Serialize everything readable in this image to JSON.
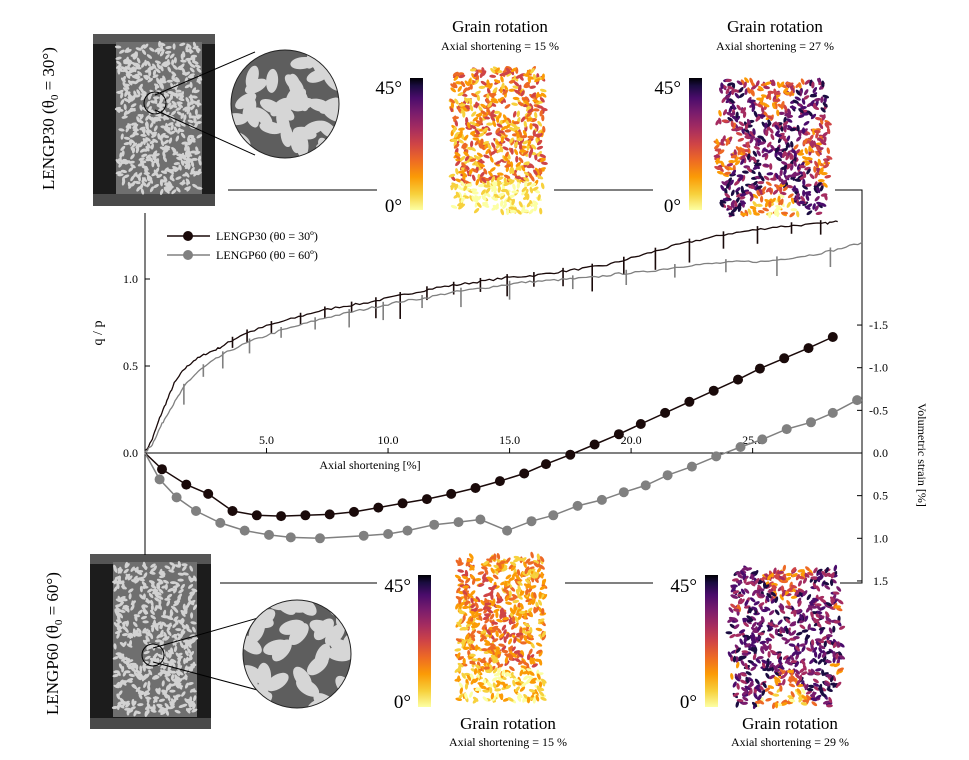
{
  "figure": {
    "sample_top_label": "LENGP30 (θ",
    "sample_top_sub": "0",
    "sample_top_value": " = 30°)",
    "sample_bottom_label": "LENGP60 (θ",
    "sample_bottom_sub": "0",
    "sample_bottom_value": " = 60°)",
    "panels": [
      {
        "title": "Grain rotation",
        "subtitle": "Axial shortening = 15 %",
        "scale_max": "45°",
        "scale_min": "0°"
      },
      {
        "title": "Grain rotation",
        "subtitle": "Axial shortening = 27 %",
        "scale_max": "45°",
        "scale_min": "0°"
      },
      {
        "title": "Grain rotation",
        "subtitle": "Axial shortening = 15 %",
        "scale_max": "45°",
        "scale_min": "0°"
      },
      {
        "title": "Grain rotation",
        "subtitle": "Axial shortening = 29 %",
        "scale_max": "45°",
        "scale_min": "0°"
      }
    ],
    "colormap": [
      "#fcffa4",
      "#f7d13d",
      "#fb9b06",
      "#ed6925",
      "#cf4446",
      "#a52c60",
      "#781c6d",
      "#4a0c6b",
      "#1b0c41",
      "#000004"
    ]
  },
  "chart_data": {
    "type": "line",
    "xlabel": "Axial shortening [%]",
    "ylabel_left": "q / p",
    "ylabel_right": "Volumetric strain [%]",
    "xlim": [
      0,
      29.5
    ],
    "x_ticks": [
      5.0,
      10.0,
      15.0,
      20.0,
      25.0
    ],
    "x_tick_labels": [
      "5.0",
      "10.0",
      "15.0",
      "20.0",
      "25.0"
    ],
    "ylim_left": [
      0,
      1.35
    ],
    "y_ticks_left": [
      0.0,
      0.5,
      1.0
    ],
    "y_tick_labels_left": [
      "0.0",
      "0.5",
      "1.0"
    ],
    "ylim_right": [
      -2.0,
      1.5
    ],
    "y_ticks_right": [
      -1.5,
      -1.0,
      -0.5,
      0.0,
      0.5,
      1.0,
      1.5
    ],
    "y_tick_labels_right": [
      "-1.5",
      "-1.0",
      "-0.5",
      "0.0",
      "0.5",
      "1.0",
      "1.5"
    ],
    "legend_position": "top-left",
    "series": [
      {
        "name": "LENGP30 (θ0 = 30º)",
        "color": "#1a0a0a",
        "qp": [
          [
            0,
            0
          ],
          [
            0.3,
            0.08
          ],
          [
            0.6,
            0.2
          ],
          [
            0.9,
            0.3
          ],
          [
            1.2,
            0.4
          ],
          [
            1.6,
            0.48
          ],
          [
            2.0,
            0.53
          ],
          [
            2.5,
            0.57
          ],
          [
            3.0,
            0.6
          ],
          [
            3.5,
            0.64
          ],
          [
            4.0,
            0.68
          ],
          [
            5.0,
            0.73
          ],
          [
            6.0,
            0.77
          ],
          [
            7.0,
            0.81
          ],
          [
            8.0,
            0.84
          ],
          [
            9.0,
            0.86
          ],
          [
            10.0,
            0.89
          ],
          [
            11.0,
            0.92
          ],
          [
            12.0,
            0.95
          ],
          [
            13.0,
            0.97
          ],
          [
            14.0,
            0.99
          ],
          [
            15.0,
            1.01
          ],
          [
            16.0,
            1.02
          ],
          [
            17.0,
            1.04
          ],
          [
            18.0,
            1.06
          ],
          [
            19.0,
            1.08
          ],
          [
            20.0,
            1.12
          ],
          [
            21.0,
            1.16
          ],
          [
            22.0,
            1.2
          ],
          [
            23.0,
            1.23
          ],
          [
            24.0,
            1.26
          ],
          [
            25.0,
            1.28
          ],
          [
            26.0,
            1.3
          ],
          [
            27.0,
            1.31
          ],
          [
            28.0,
            1.32
          ],
          [
            28.5,
            1.33
          ]
        ],
        "vol": [
          [
            0,
            0
          ],
          [
            0.7,
            0.19
          ],
          [
            1.7,
            0.37
          ],
          [
            2.6,
            0.48
          ],
          [
            3.6,
            0.68
          ],
          [
            4.6,
            0.73
          ],
          [
            5.6,
            0.74
          ],
          [
            6.6,
            0.73
          ],
          [
            7.6,
            0.72
          ],
          [
            8.6,
            0.69
          ],
          [
            9.6,
            0.64
          ],
          [
            10.6,
            0.59
          ],
          [
            11.6,
            0.54
          ],
          [
            12.6,
            0.48
          ],
          [
            13.6,
            0.41
          ],
          [
            14.6,
            0.33
          ],
          [
            15.6,
            0.24
          ],
          [
            16.5,
            0.13
          ],
          [
            17.5,
            0.02
          ],
          [
            18.5,
            -0.1
          ],
          [
            19.5,
            -0.22
          ],
          [
            20.4,
            -0.34
          ],
          [
            21.4,
            -0.47
          ],
          [
            22.4,
            -0.6
          ],
          [
            23.4,
            -0.73
          ],
          [
            24.4,
            -0.86
          ],
          [
            25.3,
            -0.99
          ],
          [
            26.3,
            -1.11
          ],
          [
            27.3,
            -1.23
          ],
          [
            28.3,
            -1.36
          ]
        ]
      },
      {
        "name": "LENGP60 (θ0 = 60º)",
        "color": "#808080",
        "qp": [
          [
            0,
            0
          ],
          [
            0.3,
            0.05
          ],
          [
            0.6,
            0.14
          ],
          [
            0.9,
            0.22
          ],
          [
            1.3,
            0.31
          ],
          [
            1.7,
            0.4
          ],
          [
            2.2,
            0.47
          ],
          [
            2.8,
            0.53
          ],
          [
            3.5,
            0.59
          ],
          [
            4.5,
            0.65
          ],
          [
            5.5,
            0.7
          ],
          [
            6.5,
            0.74
          ],
          [
            7.5,
            0.78
          ],
          [
            8.5,
            0.81
          ],
          [
            9.5,
            0.84
          ],
          [
            10.5,
            0.87
          ],
          [
            11.5,
            0.89
          ],
          [
            12.5,
            0.92
          ],
          [
            13.5,
            0.94
          ],
          [
            14.5,
            0.96
          ],
          [
            15.5,
            0.98
          ],
          [
            16.5,
            0.99
          ],
          [
            17.5,
            1.0
          ],
          [
            18.5,
            1.01
          ],
          [
            19.5,
            1.03
          ],
          [
            20.5,
            1.04
          ],
          [
            21.5,
            1.06
          ],
          [
            22.5,
            1.08
          ],
          [
            23.5,
            1.09
          ],
          [
            24.5,
            1.1
          ],
          [
            25.5,
            1.1
          ],
          [
            26.5,
            1.12
          ],
          [
            27.5,
            1.14
          ],
          [
            28.5,
            1.17
          ],
          [
            29.5,
            1.21
          ]
        ],
        "vol": [
          [
            0,
            0
          ],
          [
            0.6,
            0.31
          ],
          [
            1.3,
            0.52
          ],
          [
            2.1,
            0.68
          ],
          [
            3.1,
            0.82
          ],
          [
            4.1,
            0.91
          ],
          [
            5.1,
            0.96
          ],
          [
            6.0,
            0.99
          ],
          [
            7.2,
            1.0
          ],
          [
            9.0,
            0.97
          ],
          [
            10.0,
            0.95
          ],
          [
            10.8,
            0.91
          ],
          [
            11.9,
            0.84
          ],
          [
            12.9,
            0.81
          ],
          [
            13.8,
            0.78
          ],
          [
            14.9,
            0.91
          ],
          [
            15.9,
            0.8
          ],
          [
            16.8,
            0.73
          ],
          [
            17.8,
            0.62
          ],
          [
            18.8,
            0.55
          ],
          [
            19.7,
            0.46
          ],
          [
            20.6,
            0.38
          ],
          [
            21.5,
            0.26
          ],
          [
            22.5,
            0.16
          ],
          [
            23.5,
            0.04
          ],
          [
            24.5,
            -0.07
          ],
          [
            25.4,
            -0.16
          ],
          [
            26.4,
            -0.28
          ],
          [
            27.4,
            -0.36
          ],
          [
            28.3,
            -0.47
          ],
          [
            29.3,
            -0.62
          ]
        ]
      }
    ]
  }
}
